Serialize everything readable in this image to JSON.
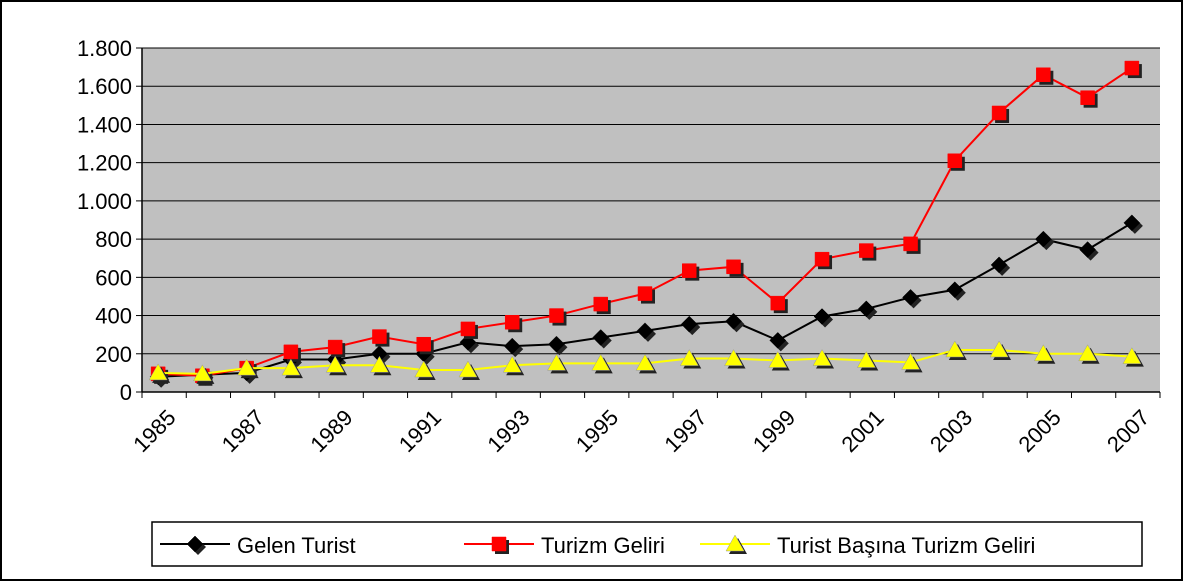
{
  "chart_data": {
    "type": "line",
    "categories": [
      "1985",
      null,
      "1987",
      null,
      "1989",
      null,
      "1991",
      null,
      "1993",
      null,
      "1995",
      null,
      "1997",
      null,
      "1999",
      null,
      "2001",
      null,
      "2003",
      null,
      "2005",
      null,
      "2007"
    ],
    "series": [
      {
        "name": "Gelen Turist",
        "color": "#000000",
        "marker": "diamond",
        "values": [
          80,
          90,
          100,
          170,
          170,
          200,
          200,
          260,
          240,
          250,
          285,
          320,
          355,
          370,
          270,
          395,
          435,
          495,
          535,
          665,
          800,
          745,
          885
        ]
      },
      {
        "name": "Turizm Geliri",
        "color": "#ff0000",
        "marker": "square",
        "values": [
          95,
          85,
          125,
          210,
          235,
          290,
          250,
          330,
          365,
          400,
          460,
          515,
          635,
          655,
          465,
          695,
          740,
          775,
          1210,
          1460,
          1660,
          1540,
          1695
        ]
      },
      {
        "name": "Turist Başına Turizm Geliri",
        "color": "#ffff00",
        "marker": "triangle",
        "values": [
          100,
          95,
          125,
          125,
          140,
          140,
          115,
          115,
          140,
          150,
          150,
          150,
          175,
          175,
          165,
          175,
          165,
          155,
          220,
          220,
          200,
          200,
          185
        ]
      }
    ],
    "ylim": [
      0,
      1800
    ],
    "yticks": [
      0,
      200,
      400,
      600,
      800,
      {
        "value": 1000,
        "label": "1.000"
      },
      {
        "value": 1200,
        "label": "1.200"
      },
      {
        "value": 1400,
        "label": "1.400"
      },
      {
        "value": 1600,
        "label": "1.600"
      },
      {
        "value": 1800,
        "label": "1.800"
      }
    ],
    "grid": true,
    "legend": "bottom"
  }
}
